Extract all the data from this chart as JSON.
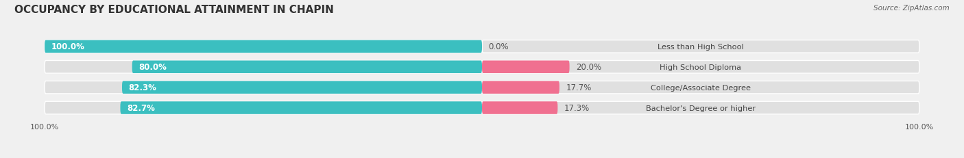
{
  "title": "OCCUPANCY BY EDUCATIONAL ATTAINMENT IN CHAPIN",
  "source": "Source: ZipAtlas.com",
  "categories": [
    "Less than High School",
    "High School Diploma",
    "College/Associate Degree",
    "Bachelor's Degree or higher"
  ],
  "owner_values": [
    100.0,
    80.0,
    82.3,
    82.7
  ],
  "renter_values": [
    0.0,
    20.0,
    17.7,
    17.3
  ],
  "owner_color": "#3bbfc0",
  "renter_color": "#f07090",
  "bg_color": "#f0f0f0",
  "bar_bg_color": "#e0e0e0",
  "row_bg_color": "#e8e8e8",
  "title_fontsize": 11,
  "label_fontsize": 8.5,
  "tick_fontsize": 8,
  "bar_height": 0.62,
  "owner_pct_color": "#ffffff",
  "renter_pct_color": "#555555",
  "cat_label_color": "#444444"
}
